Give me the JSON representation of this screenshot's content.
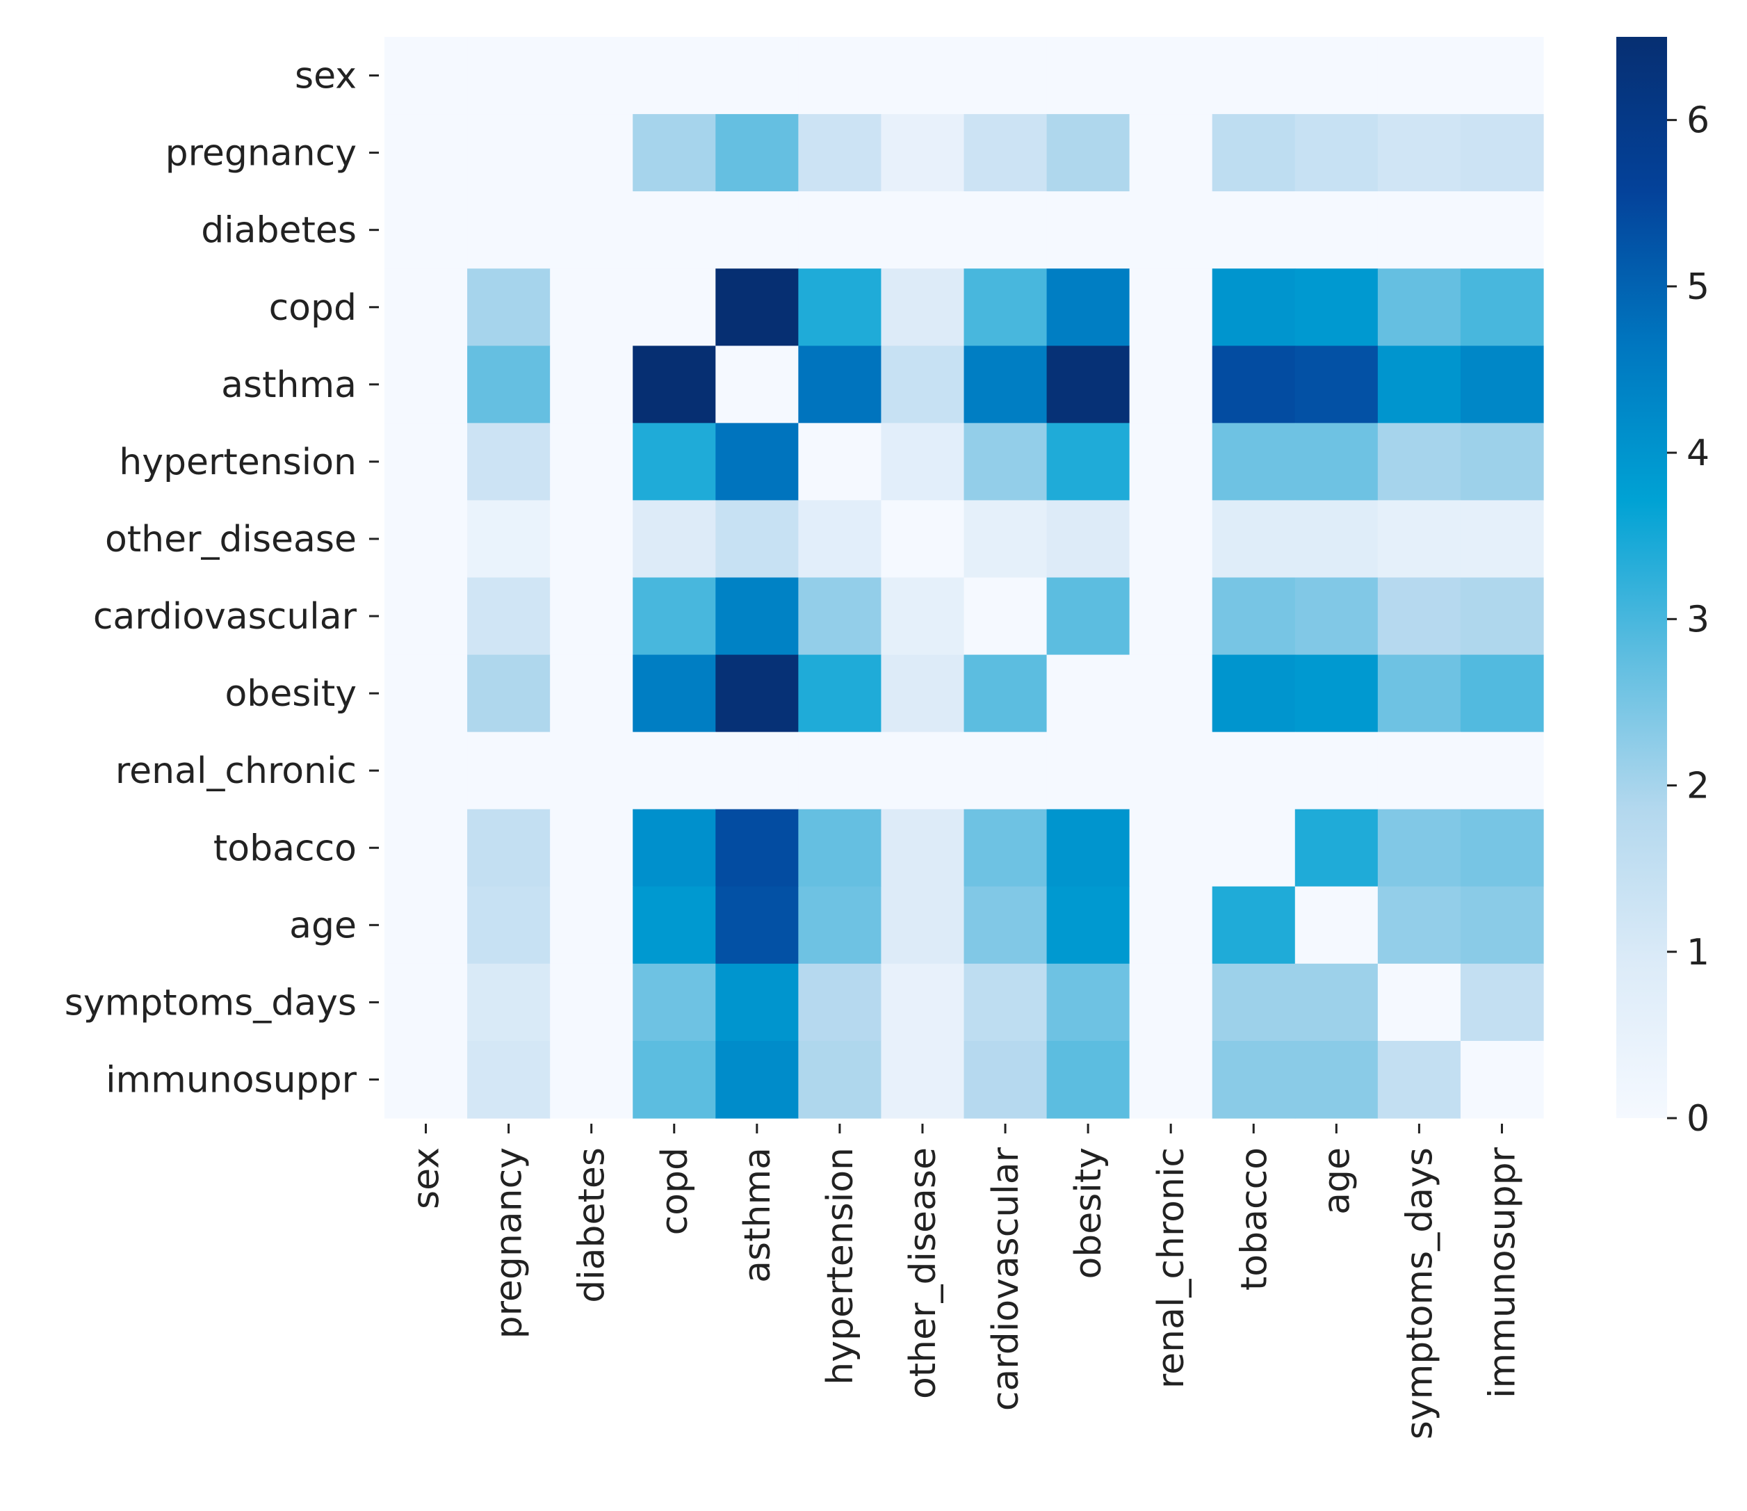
{
  "chart_data": {
    "type": "heatmap",
    "title": "",
    "xlabel": "",
    "ylabel": "",
    "labels": [
      "sex",
      "pregnancy",
      "diabetes",
      "copd",
      "asthma",
      "hypertension",
      "other_disease",
      "cardiovascular",
      "obesity",
      "renal_chronic",
      "tobacco",
      "age",
      "symptoms_days",
      "immunosuppr"
    ],
    "matrix": [
      [
        0,
        0,
        0,
        0,
        0,
        0,
        0,
        0,
        0,
        0,
        0,
        0,
        0,
        0
      ],
      [
        0,
        0,
        0,
        2.0,
        2.7,
        1.3,
        0.5,
        1.3,
        1.9,
        0,
        1.6,
        1.4,
        1.2,
        1.3
      ],
      [
        0,
        0,
        0,
        0,
        0,
        0,
        0,
        0,
        0,
        0,
        0,
        0,
        0,
        0
      ],
      [
        0,
        2.0,
        0,
        0,
        6.5,
        3.4,
        0.9,
        3.0,
        4.5,
        0,
        4.0,
        3.9,
        2.7,
        3.0
      ],
      [
        0,
        2.7,
        0,
        6.5,
        0,
        4.7,
        1.4,
        4.5,
        6.4,
        0,
        5.4,
        5.3,
        4.0,
        4.3
      ],
      [
        0,
        1.3,
        0,
        3.4,
        4.7,
        0,
        0.7,
        2.2,
        3.4,
        0,
        2.6,
        2.6,
        2.0,
        2.1
      ],
      [
        0,
        0.4,
        0,
        0.9,
        1.4,
        0.7,
        0,
        0.6,
        0.9,
        0,
        0.8,
        0.8,
        0.6,
        0.6
      ],
      [
        0,
        1.2,
        0,
        3.0,
        4.4,
        2.2,
        0.6,
        0,
        2.8,
        0,
        2.5,
        2.4,
        1.8,
        1.9
      ],
      [
        0,
        1.9,
        0,
        4.5,
        6.4,
        3.4,
        0.9,
        2.8,
        0,
        0,
        4.0,
        3.9,
        2.6,
        2.9
      ],
      [
        0,
        0,
        0,
        0,
        0,
        0,
        0,
        0,
        0,
        0,
        0,
        0,
        0,
        0
      ],
      [
        0,
        1.5,
        0,
        4.1,
        5.4,
        2.7,
        0.9,
        2.6,
        4.0,
        0,
        0,
        3.4,
        2.4,
        2.5
      ],
      [
        0,
        1.4,
        0,
        3.9,
        5.3,
        2.6,
        0.9,
        2.4,
        3.9,
        0,
        3.4,
        0,
        2.2,
        2.3
      ],
      [
        0,
        1.0,
        0,
        2.6,
        4.0,
        1.8,
        0.5,
        1.6,
        2.6,
        0,
        2.1,
        2.1,
        0,
        1.5
      ],
      [
        0,
        1.1,
        0,
        2.8,
        4.2,
        1.9,
        0.5,
        1.8,
        2.8,
        0,
        2.3,
        2.3,
        1.5,
        0
      ]
    ],
    "colorbar": {
      "min": 0,
      "max": 6.5,
      "ticks": [
        "0",
        "1",
        "2",
        "3",
        "4",
        "5",
        "6"
      ],
      "colormap": "Blues"
    },
    "colors": [
      "#f5f9ff",
      "#dcebf8",
      "#b3d8ee",
      "#5dbde0",
      "#00a2d4",
      "#0077c0",
      "#04429a",
      "#062f72"
    ]
  }
}
